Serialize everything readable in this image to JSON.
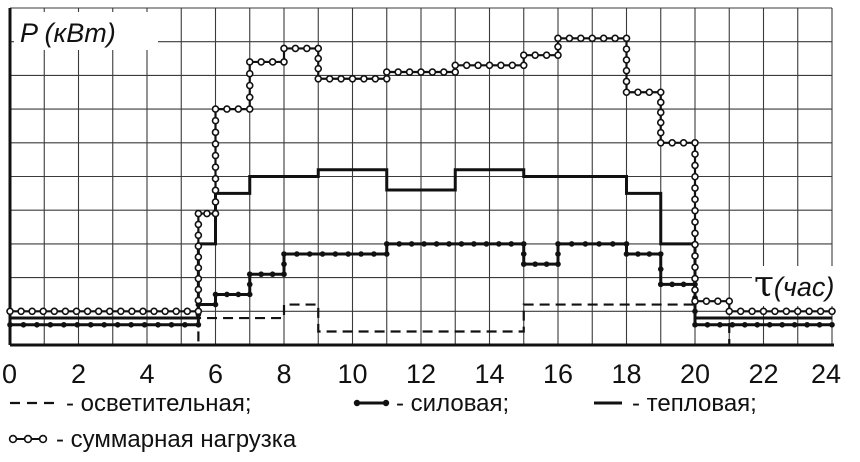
{
  "chart_data": {
    "type": "line",
    "ylabel": "P (кВт)",
    "xlabel_symbol": "τ",
    "xlabel": "(час)",
    "xlim": [
      0,
      24
    ],
    "ylim": [
      0,
      10
    ],
    "x_ticks": [
      "0",
      "2",
      "4",
      "6",
      "8",
      "10",
      "12",
      "14",
      "16",
      "18",
      "20",
      "22",
      "24"
    ],
    "grid": true,
    "series": [
      {
        "id": "lighting",
        "name": "осветительная",
        "style": "dashed",
        "steps": [
          [
            0,
            5.5,
            0
          ],
          [
            5.5,
            6,
            0.8
          ],
          [
            6,
            8,
            0.8
          ],
          [
            8,
            9,
            1.2
          ],
          [
            9,
            15,
            0.4
          ],
          [
            15,
            20,
            1.2
          ],
          [
            20,
            21,
            0.8
          ],
          [
            21,
            24,
            0
          ]
        ]
      },
      {
        "id": "power",
        "name": "силовая",
        "style": "dotted",
        "steps": [
          [
            0,
            5.5,
            0.6
          ],
          [
            5.5,
            6,
            1.2
          ],
          [
            6,
            7,
            1.5
          ],
          [
            7,
            8,
            2.1
          ],
          [
            8,
            11,
            2.7
          ],
          [
            11,
            15,
            3
          ],
          [
            15,
            16,
            2.4
          ],
          [
            16,
            18,
            3
          ],
          [
            18,
            19,
            2.7
          ],
          [
            19,
            20,
            1.8
          ],
          [
            20,
            24,
            0.6
          ]
        ]
      },
      {
        "id": "heat",
        "name": "тепловая",
        "style": "solid",
        "steps": [
          [
            0,
            5.5,
            0.8
          ],
          [
            5.5,
            6,
            3
          ],
          [
            6,
            7,
            4.5
          ],
          [
            7,
            9,
            5
          ],
          [
            9,
            11,
            5.2
          ],
          [
            11,
            13,
            4.6
          ],
          [
            13,
            15,
            5.2
          ],
          [
            15,
            18,
            5
          ],
          [
            18,
            19,
            4.5
          ],
          [
            19,
            20,
            3
          ],
          [
            20,
            24,
            0.8
          ]
        ]
      },
      {
        "id": "total",
        "name": "суммарная нагрузка",
        "style": "circles",
        "steps": [
          [
            0,
            5.5,
            1
          ],
          [
            5.5,
            6,
            3.9
          ],
          [
            6,
            7,
            7
          ],
          [
            7,
            8,
            8.4
          ],
          [
            8,
            9,
            8.8
          ],
          [
            9,
            11,
            7.9
          ],
          [
            11,
            13,
            8.1
          ],
          [
            13,
            15,
            8.3
          ],
          [
            15,
            16,
            8.6
          ],
          [
            16,
            18,
            9.1
          ],
          [
            18,
            19,
            7.5
          ],
          [
            19,
            20,
            6
          ],
          [
            20,
            21,
            1.3
          ],
          [
            21,
            24,
            1
          ]
        ]
      }
    ]
  },
  "legend": {
    "line1": {
      "lighting": "- осветительная;",
      "power": "- силовая;",
      "heat": "- тепловая;"
    },
    "line2": {
      "total": "- суммарная нагрузка"
    }
  }
}
